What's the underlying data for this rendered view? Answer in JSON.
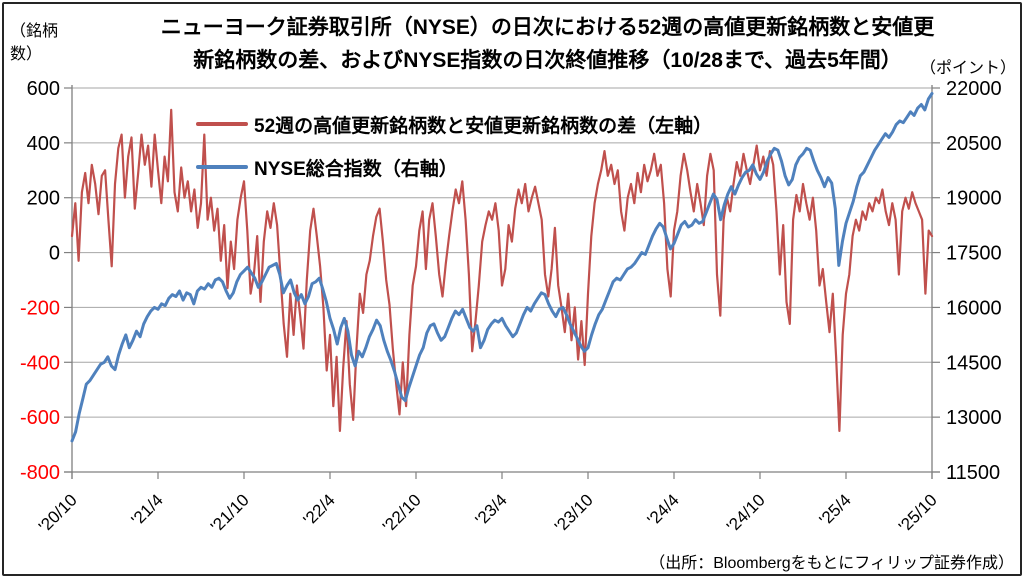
{
  "source": "（出所：Bloombergをもとにフィリップ証券作成）",
  "chart_data": {
    "type": "line",
    "title_line1": "ニューヨーク証券取引所（NYSE）の日次における52週の高値更新銘柄数と安値更",
    "title_line2": "新銘柄数の差、およびNYSE指数の日次終値推移（10/28まで、過去5年間）",
    "x_tick_labels": [
      "'20/10",
      "'21/4",
      "'21/10",
      "'22/4",
      "'22/10",
      "'23/4",
      "'23/10",
      "'24/4",
      "'24/10",
      "'25/4",
      "'25/10"
    ],
    "left_axis": {
      "unit": "（銘柄数）",
      "min": -800,
      "max": 600,
      "ticks": [
        600,
        400,
        200,
        0,
        -200,
        -400,
        -600,
        -800
      ]
    },
    "right_axis": {
      "unit": "（ポイント）",
      "min": 11500,
      "max": 22000,
      "ticks": [
        22000,
        20500,
        19000,
        17500,
        16000,
        14500,
        13000,
        11500
      ]
    },
    "grid": "horizontal-only",
    "legend_position": "inside-top-left",
    "colors": {
      "red_series": "#C0504D",
      "blue_series": "#4F81BD",
      "grid": "#A6A6A6",
      "axis": "#808080",
      "negative_tick": "#FF0000",
      "text": "#000000"
    },
    "series": [
      {
        "name": "52週の高値更新銘柄数と安値更新銘柄数の差（左軸）",
        "axis": "left",
        "color": "#C0504D",
        "resolution": "weekly-approx",
        "values": [
          60,
          180,
          -30,
          220,
          290,
          180,
          320,
          250,
          140,
          280,
          300,
          120,
          -50,
          250,
          380,
          430,
          200,
          350,
          420,
          160,
          290,
          430,
          320,
          390,
          240,
          430,
          300,
          180,
          350,
          260,
          520,
          220,
          150,
          310,
          200,
          260,
          150,
          230,
          90,
          180,
          430,
          120,
          200,
          80,
          160,
          -30,
          100,
          -130,
          40,
          -60,
          120,
          200,
          260,
          80,
          -150,
          -80,
          60,
          -180,
          40,
          150,
          90,
          180,
          100,
          -80,
          -260,
          -380,
          -150,
          -300,
          -120,
          -230,
          -350,
          -100,
          80,
          160,
          60,
          -50,
          -200,
          -430,
          -300,
          -560,
          -380,
          -650,
          -420,
          -250,
          -480,
          -610,
          -350,
          -150,
          -220,
          -80,
          -30,
          60,
          130,
          160,
          40,
          -100,
          -190,
          -350,
          -480,
          -590,
          -400,
          -560,
          -300,
          -120,
          -50,
          80,
          150,
          -60,
          120,
          180,
          60,
          -80,
          -160,
          -40,
          60,
          150,
          230,
          180,
          260,
          120,
          -80,
          -360,
          -250,
          -120,
          40,
          100,
          150,
          120,
          180,
          80,
          -120,
          -60,
          100,
          40,
          160,
          230,
          180,
          250,
          150,
          200,
          240,
          180,
          120,
          -80,
          -160,
          -60,
          90,
          -120,
          -200,
          -290,
          -150,
          -320,
          -200,
          -390,
          -250,
          -410,
          -150,
          60,
          180,
          250,
          300,
          370,
          280,
          320,
          250,
          300,
          150,
          80,
          200,
          250,
          180,
          290,
          220,
          320,
          260,
          300,
          360,
          280,
          320,
          180,
          -60,
          -160,
          80,
          150,
          280,
          360,
          300,
          220,
          150,
          250,
          180,
          100,
          280,
          360,
          300,
          -80,
          -230,
          120,
          200,
          150,
          250,
          330,
          280,
          360,
          300,
          250,
          320,
          390,
          300,
          350,
          280,
          370,
          320,
          150,
          -80,
          100,
          -180,
          -260,
          120,
          210,
          150,
          250,
          180,
          120,
          200,
          80,
          -120,
          -60,
          -180,
          -290,
          -150,
          -380,
          -650,
          -300,
          -150,
          -80,
          60,
          120,
          80,
          150,
          120,
          180,
          150,
          200,
          180,
          230,
          150,
          100,
          180,
          120,
          -80,
          150,
          200,
          160,
          220,
          180,
          150,
          120,
          -150,
          80,
          60
        ]
      },
      {
        "name": "NYSE総合指数（右軸）",
        "axis": "right",
        "color": "#4F81BD",
        "resolution": "weekly-approx",
        "values": [
          12350,
          12600,
          13100,
          13500,
          13900,
          14000,
          14150,
          14300,
          14450,
          14500,
          14650,
          14400,
          14300,
          14700,
          15000,
          15250,
          14900,
          15100,
          15350,
          15200,
          15550,
          15750,
          15900,
          16000,
          15950,
          16100,
          16050,
          16250,
          16350,
          16300,
          16450,
          16200,
          16400,
          16350,
          16100,
          16450,
          16550,
          16500,
          16650,
          16550,
          16750,
          16800,
          16700,
          16450,
          16250,
          16400,
          16700,
          16900,
          17000,
          17100,
          16950,
          16800,
          16550,
          16700,
          16900,
          17100,
          17150,
          17200,
          16900,
          16400,
          16600,
          16750,
          16400,
          16200,
          16350,
          16100,
          16300,
          16650,
          16700,
          16800,
          16500,
          16150,
          15700,
          15400,
          15000,
          15450,
          15700,
          15350,
          14700,
          14400,
          14800,
          14650,
          14900,
          15200,
          15400,
          15650,
          15500,
          15100,
          14800,
          14550,
          14250,
          13900,
          13550,
          13450,
          13800,
          14100,
          14400,
          14700,
          14900,
          15300,
          15500,
          15550,
          15300,
          15100,
          15200,
          15450,
          15700,
          15900,
          15800,
          15950,
          15700,
          15450,
          15350,
          15500,
          14900,
          15100,
          15400,
          15550,
          15650,
          15600,
          15700,
          15500,
          15350,
          15200,
          15300,
          15550,
          15800,
          16000,
          15900,
          16100,
          16250,
          16400,
          16350,
          16100,
          15900,
          15750,
          15950,
          16000,
          15800,
          15550,
          15350,
          15150,
          14950,
          14800,
          14900,
          15250,
          15550,
          15800,
          15950,
          16200,
          16450,
          16700,
          16800,
          16750,
          16900,
          17050,
          17100,
          17200,
          17350,
          17500,
          17450,
          17700,
          17950,
          18150,
          18300,
          18200,
          17900,
          17600,
          17750,
          18000,
          18250,
          18350,
          18200,
          18250,
          18400,
          18300,
          18350,
          18600,
          18850,
          19100,
          18950,
          18400,
          18800,
          19100,
          19300,
          19100,
          19350,
          19550,
          19700,
          19750,
          19900,
          19650,
          19500,
          19700,
          20000,
          20200,
          20350,
          20300,
          20000,
          19600,
          19350,
          19500,
          19900,
          20100,
          20200,
          20350,
          20300,
          20000,
          19750,
          19550,
          19300,
          19550,
          19400,
          18700,
          17150,
          17800,
          18300,
          18600,
          18900,
          19300,
          19600,
          19700,
          19900,
          20100,
          20300,
          20450,
          20600,
          20750,
          20650,
          20800,
          21000,
          21100,
          21050,
          21200,
          21350,
          21250,
          21450,
          21550,
          21400,
          21700,
          21850
        ]
      }
    ]
  }
}
